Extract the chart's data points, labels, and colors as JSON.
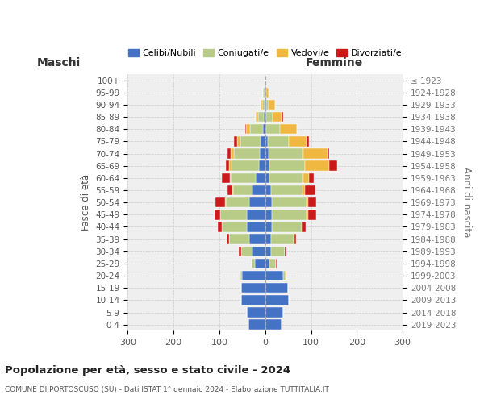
{
  "age_groups": [
    "100+",
    "95-99",
    "90-94",
    "85-89",
    "80-84",
    "75-79",
    "70-74",
    "65-69",
    "60-64",
    "55-59",
    "50-54",
    "45-49",
    "40-44",
    "35-39",
    "30-34",
    "25-29",
    "20-24",
    "15-19",
    "10-14",
    "5-9",
    "0-4"
  ],
  "birth_years": [
    "≤ 1923",
    "1924-1928",
    "1929-1933",
    "1934-1938",
    "1939-1943",
    "1944-1948",
    "1949-1953",
    "1954-1958",
    "1959-1963",
    "1964-1968",
    "1969-1973",
    "1974-1978",
    "1979-1983",
    "1984-1988",
    "1989-1993",
    "1994-1998",
    "1999-2003",
    "2004-2008",
    "2009-2013",
    "2014-2018",
    "2019-2023"
  ],
  "maschi": {
    "celibi": [
      0,
      2,
      2,
      3,
      5,
      10,
      12,
      14,
      20,
      28,
      35,
      40,
      40,
      35,
      28,
      22,
      50,
      52,
      52,
      40,
      36
    ],
    "coniugati": [
      0,
      2,
      5,
      13,
      28,
      44,
      56,
      60,
      55,
      42,
      50,
      58,
      55,
      44,
      24,
      8,
      4,
      0,
      0,
      0,
      0
    ],
    "vedovi": [
      0,
      0,
      3,
      5,
      8,
      8,
      8,
      5,
      2,
      2,
      2,
      0,
      0,
      0,
      0,
      0,
      0,
      0,
      0,
      0,
      0
    ],
    "divorziati": [
      0,
      0,
      0,
      0,
      2,
      6,
      6,
      6,
      18,
      10,
      22,
      12,
      8,
      5,
      5,
      0,
      0,
      0,
      0,
      0,
      0
    ]
  },
  "femmine": {
    "nubili": [
      0,
      2,
      2,
      3,
      3,
      5,
      8,
      10,
      10,
      12,
      14,
      14,
      14,
      12,
      12,
      10,
      40,
      50,
      52,
      40,
      36
    ],
    "coniugate": [
      0,
      0,
      5,
      13,
      30,
      46,
      76,
      76,
      74,
      70,
      76,
      76,
      65,
      50,
      30,
      14,
      5,
      0,
      0,
      0,
      0
    ],
    "vedove": [
      0,
      5,
      15,
      20,
      36,
      40,
      52,
      54,
      12,
      4,
      4,
      4,
      2,
      2,
      0,
      0,
      2,
      0,
      0,
      0,
      0
    ],
    "divorziate": [
      0,
      0,
      0,
      4,
      0,
      4,
      4,
      18,
      10,
      24,
      18,
      18,
      8,
      4,
      4,
      2,
      0,
      0,
      0,
      0,
      0
    ]
  },
  "colors": {
    "celibi": "#4472c4",
    "coniugati": "#b8cc88",
    "vedovi": "#f0b840",
    "divorziati": "#cc1a1a"
  },
  "title": "Popolazione per età, sesso e stato civile - 2024",
  "subtitle": "COMUNE DI PORTOSCUSO (SU) - Dati ISTAT 1° gennaio 2024 - Elaborazione TUTTITALIA.IT",
  "label_maschi": "Maschi",
  "label_femmine": "Femmine",
  "ylabel_left": "Fasce di età",
  "ylabel_right": "Anni di nascita",
  "xlim": 300,
  "legend_labels": [
    "Celibi/Nubili",
    "Coniugati/e",
    "Vedovi/e",
    "Divorziati/e"
  ],
  "background_color": "#ffffff",
  "plot_bg_color": "#efefef",
  "grid_color": "#cccccc"
}
